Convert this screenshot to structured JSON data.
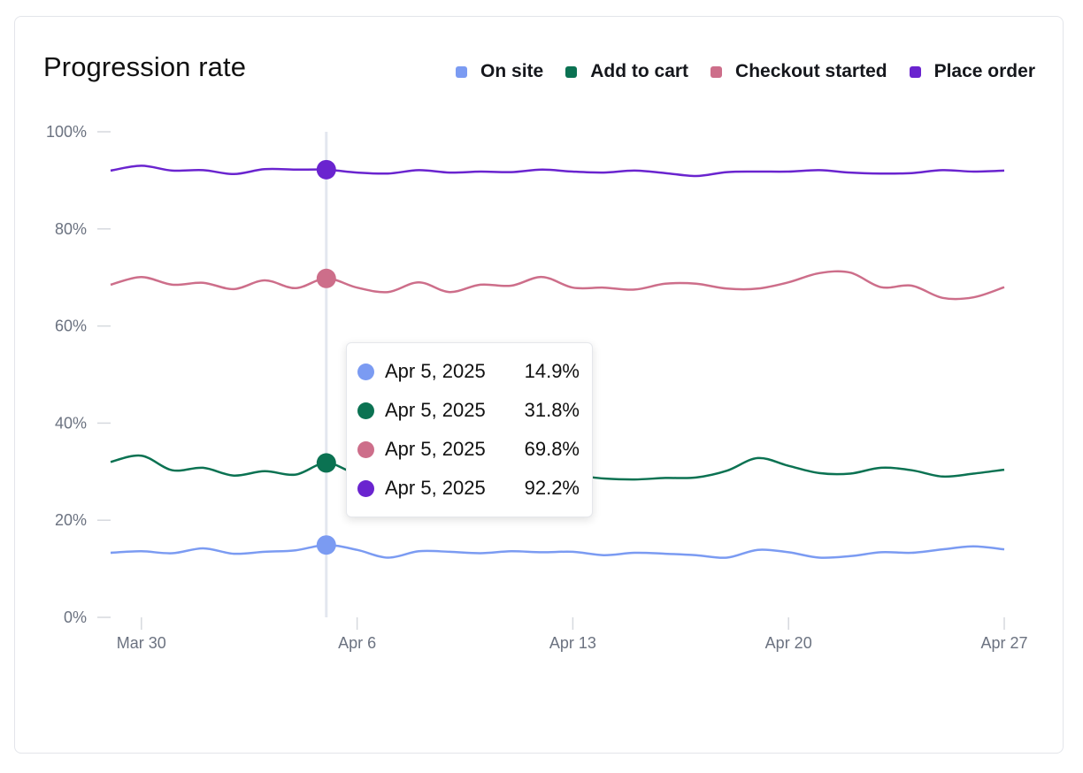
{
  "title": "Progression rate",
  "colors": {
    "on_site": "#7b9bf2",
    "add_to_cart": "#0b7252",
    "checkout_started": "#cd6e8a",
    "place_order": "#6a24cf"
  },
  "legend": [
    {
      "label": "On site",
      "color": "#7b9bf2"
    },
    {
      "label": "Add to cart",
      "color": "#0b7252"
    },
    {
      "label": "Checkout started",
      "color": "#cd6e8a"
    },
    {
      "label": "Place order",
      "color": "#6a24cf"
    }
  ],
  "tooltip": {
    "rows": [
      {
        "date": "Apr 5, 2025",
        "value": "14.9%",
        "color": "#7b9bf2"
      },
      {
        "date": "Apr 5, 2025",
        "value": "31.8%",
        "color": "#0b7252"
      },
      {
        "date": "Apr 5, 2025",
        "value": "69.8%",
        "color": "#cd6e8a"
      },
      {
        "date": "Apr 5, 2025",
        "value": "92.2%",
        "color": "#6a24cf"
      }
    ]
  },
  "chart_data": {
    "type": "line",
    "title": "Progression rate",
    "xlabel": "",
    "ylabel": "",
    "ylim": [
      0,
      100
    ],
    "y_ticks": [
      "0%",
      "20%",
      "40%",
      "60%",
      "80%",
      "100%"
    ],
    "x_ticks": [
      {
        "label": "Mar 30",
        "date": "2025-03-30"
      },
      {
        "label": "Apr 6",
        "date": "2025-04-06"
      },
      {
        "label": "Apr 13",
        "date": "2025-04-13"
      },
      {
        "label": "Apr 20",
        "date": "2025-04-20"
      },
      {
        "label": "Apr 27",
        "date": "2025-04-27"
      }
    ],
    "grid": false,
    "legend_position": "top-right",
    "highlight_date": "2025-04-05",
    "x": [
      "2025-03-29",
      "2025-03-30",
      "2025-03-31",
      "2025-04-01",
      "2025-04-02",
      "2025-04-03",
      "2025-04-04",
      "2025-04-05",
      "2025-04-06",
      "2025-04-07",
      "2025-04-08",
      "2025-04-09",
      "2025-04-10",
      "2025-04-11",
      "2025-04-12",
      "2025-04-13",
      "2025-04-14",
      "2025-04-15",
      "2025-04-16",
      "2025-04-17",
      "2025-04-18",
      "2025-04-19",
      "2025-04-20",
      "2025-04-21",
      "2025-04-22",
      "2025-04-23",
      "2025-04-24",
      "2025-04-25",
      "2025-04-26",
      "2025-04-27"
    ],
    "series": [
      {
        "name": "On site",
        "color": "#7b9bf2",
        "values": [
          13.3,
          13.6,
          13.2,
          14.2,
          13.1,
          13.5,
          13.8,
          14.9,
          13.9,
          12.3,
          13.6,
          13.5,
          13.2,
          13.6,
          13.4,
          13.5,
          12.8,
          13.3,
          13.1,
          12.8,
          12.3,
          13.9,
          13.4,
          12.3,
          12.6,
          13.4,
          13.3,
          14.0,
          14.6,
          14.0
        ]
      },
      {
        "name": "Add to cart",
        "color": "#0b7252",
        "values": [
          32.0,
          33.3,
          30.3,
          30.8,
          29.2,
          30.1,
          29.4,
          31.8,
          29.5,
          29.0,
          29.5,
          28.9,
          29.8,
          29.3,
          28.6,
          29.2,
          28.6,
          28.4,
          28.7,
          28.8,
          30.2,
          32.8,
          31.2,
          29.7,
          29.6,
          30.8,
          30.3,
          29.0,
          29.6,
          30.4
        ]
      },
      {
        "name": "Checkout started",
        "color": "#cd6e8a",
        "values": [
          68.5,
          70.1,
          68.5,
          68.9,
          67.6,
          69.4,
          67.8,
          69.8,
          67.9,
          67.0,
          69.0,
          67.0,
          68.5,
          68.3,
          70.1,
          67.9,
          67.9,
          67.5,
          68.7,
          68.7,
          67.7,
          67.7,
          69.0,
          70.9,
          71.0,
          68.0,
          68.3,
          65.8,
          65.9,
          68.0
        ]
      },
      {
        "name": "Place order",
        "color": "#6a24cf",
        "values": [
          92.0,
          93.0,
          92.0,
          92.1,
          91.3,
          92.3,
          92.2,
          92.2,
          91.6,
          91.4,
          92.1,
          91.6,
          91.8,
          91.7,
          92.2,
          91.8,
          91.6,
          92.0,
          91.5,
          90.9,
          91.7,
          91.8,
          91.8,
          92.1,
          91.6,
          91.4,
          91.5,
          92.1,
          91.8,
          92.0
        ]
      }
    ]
  }
}
